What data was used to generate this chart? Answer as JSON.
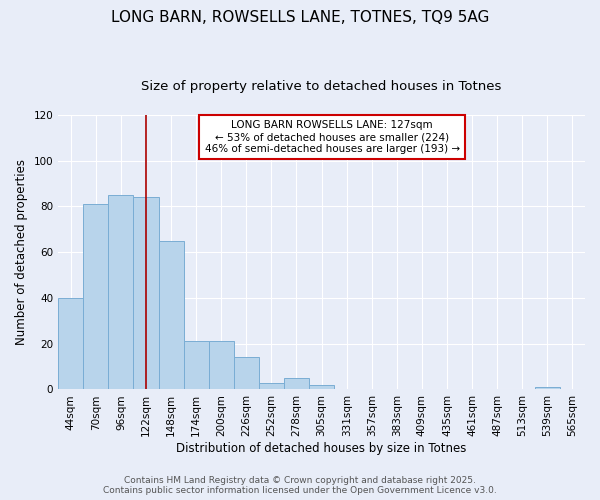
{
  "title": "LONG BARN, ROWSELLS LANE, TOTNES, TQ9 5AG",
  "subtitle": "Size of property relative to detached houses in Totnes",
  "xlabel": "Distribution of detached houses by size in Totnes",
  "ylabel": "Number of detached properties",
  "categories": [
    "44sqm",
    "70sqm",
    "96sqm",
    "122sqm",
    "148sqm",
    "174sqm",
    "200sqm",
    "226sqm",
    "252sqm",
    "278sqm",
    "305sqm",
    "331sqm",
    "357sqm",
    "383sqm",
    "409sqm",
    "435sqm",
    "461sqm",
    "487sqm",
    "513sqm",
    "539sqm",
    "565sqm"
  ],
  "values": [
    40,
    81,
    85,
    84,
    65,
    21,
    21,
    14,
    3,
    5,
    2,
    0,
    0,
    0,
    0,
    0,
    0,
    0,
    0,
    1,
    0
  ],
  "bar_color": "#b8d4eb",
  "bar_edge_color": "#7aadd4",
  "vline_x_index": 3,
  "vline_color": "#aa0000",
  "annotation_title": "LONG BARN ROWSELLS LANE: 127sqm",
  "annotation_line1": "← 53% of detached houses are smaller (224)",
  "annotation_line2": "46% of semi-detached houses are larger (193) →",
  "annotation_box_color": "#ffffff",
  "annotation_box_edge": "#cc0000",
  "ylim": [
    0,
    120
  ],
  "yticks": [
    0,
    20,
    40,
    60,
    80,
    100,
    120
  ],
  "footer1": "Contains HM Land Registry data © Crown copyright and database right 2025.",
  "footer2": "Contains public sector information licensed under the Open Government Licence v3.0.",
  "bg_color": "#e8edf8",
  "plot_bg_color": "#e8edf8",
  "title_fontsize": 11,
  "subtitle_fontsize": 9.5,
  "axis_label_fontsize": 8.5,
  "tick_fontsize": 7.5,
  "annotation_fontsize": 7.5,
  "footer_fontsize": 6.5
}
